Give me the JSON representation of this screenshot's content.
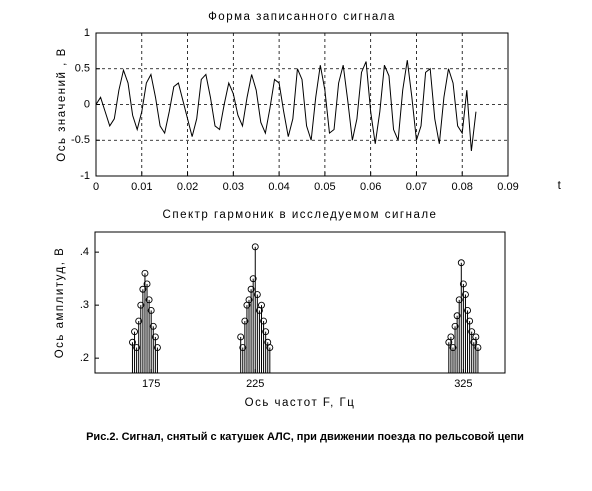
{
  "chart_data": [
    {
      "type": "line",
      "title": "Форма записанного сигнала",
      "ylabel": "Ось значений , В",
      "xlabel": "t",
      "x": [
        0,
        0.001,
        0.002,
        0.003,
        0.004,
        0.005,
        0.006,
        0.007,
        0.008,
        0.009,
        0.01,
        0.011,
        0.012,
        0.013,
        0.014,
        0.015,
        0.016,
        0.017,
        0.018,
        0.019,
        0.02,
        0.021,
        0.022,
        0.023,
        0.024,
        0.025,
        0.026,
        0.027,
        0.028,
        0.029,
        0.03,
        0.031,
        0.032,
        0.033,
        0.034,
        0.035,
        0.036,
        0.037,
        0.038,
        0.039,
        0.04,
        0.041,
        0.042,
        0.043,
        0.044,
        0.045,
        0.046,
        0.047,
        0.048,
        0.049,
        0.05,
        0.051,
        0.052,
        0.053,
        0.054,
        0.055,
        0.056,
        0.057,
        0.058,
        0.059,
        0.06,
        0.061,
        0.062,
        0.063,
        0.064,
        0.065,
        0.066,
        0.067,
        0.068,
        0.069,
        0.07,
        0.071,
        0.072,
        0.073,
        0.074,
        0.075,
        0.076,
        0.077,
        0.078,
        0.079,
        0.08,
        0.081,
        0.082,
        0.083
      ],
      "values": [
        0,
        0.1,
        -0.1,
        -0.3,
        -0.2,
        0.2,
        0.48,
        0.3,
        -0.15,
        -0.35,
        -0.1,
        0.3,
        0.42,
        0.1,
        -0.3,
        -0.4,
        -0.1,
        0.25,
        0.3,
        0.05,
        -0.2,
        -0.45,
        -0.2,
        0.35,
        0.42,
        0.1,
        -0.3,
        -0.35,
        0,
        0.3,
        0.15,
        -0.15,
        -0.3,
        0.1,
        0.42,
        0.2,
        -0.25,
        -0.4,
        -0.05,
        0.35,
        0.3,
        -0.1,
        -0.45,
        -0.2,
        0.5,
        0.35,
        -0.3,
        -0.5,
        0.1,
        0.55,
        0.2,
        -0.4,
        -0.35,
        0.3,
        0.55,
        0.05,
        -0.5,
        -0.2,
        0.45,
        0.6,
        -0.1,
        -0.55,
        -0.1,
        0.55,
        0.4,
        -0.35,
        -0.5,
        0.2,
        0.62,
        0.1,
        -0.5,
        -0.3,
        0.45,
        0.5,
        -0.2,
        -0.55,
        0.1,
        0.5,
        0.3,
        -0.3,
        -0.4,
        0.2,
        -0.65,
        -0.1
      ],
      "color": "#000000",
      "xlim": [
        0,
        0.09
      ],
      "xticks": [
        0,
        0.01,
        0.02,
        0.03,
        0.04,
        0.05,
        0.06,
        0.07,
        0.08,
        0.09
      ],
      "ylim": [
        -1,
        1
      ],
      "yticks": [
        -1,
        -0.5,
        0,
        0.5,
        1
      ],
      "grid": true
    },
    {
      "type": "stem",
      "title": "Спектр гармоник в исследуемом сигнале",
      "ylabel": "Ось амплитуд, В",
      "xlabel": "Ось частот F, Гц",
      "x": [
        166,
        167,
        168,
        169,
        170,
        171,
        172,
        173,
        174,
        175,
        176,
        177,
        178,
        218,
        219,
        220,
        221,
        222,
        223,
        224,
        225,
        226,
        227,
        228,
        229,
        230,
        231,
        232,
        318,
        319,
        320,
        321,
        322,
        323,
        324,
        325,
        326,
        327,
        328,
        329,
        330,
        331,
        332
      ],
      "values": [
        0.23,
        0.25,
        0.22,
        0.27,
        0.3,
        0.33,
        0.36,
        0.34,
        0.31,
        0.29,
        0.26,
        0.24,
        0.22,
        0.24,
        0.22,
        0.27,
        0.3,
        0.31,
        0.33,
        0.35,
        0.41,
        0.32,
        0.29,
        0.3,
        0.27,
        0.25,
        0.23,
        0.22,
        0.23,
        0.24,
        0.22,
        0.26,
        0.28,
        0.31,
        0.38,
        0.34,
        0.32,
        0.29,
        0.27,
        0.25,
        0.23,
        0.24,
        0.22
      ],
      "color": "#000000",
      "xlim": [
        148,
        345
      ],
      "xticks": [
        175,
        225,
        325
      ],
      "ylim": [
        0.172,
        0.438
      ],
      "yticks": [
        {
          "value": 0.2,
          "label": ".2"
        },
        {
          "value": 0.3,
          "label": ".3"
        },
        {
          "value": 0.4,
          "label": ".4"
        }
      ],
      "grid": false
    }
  ],
  "caption": "Рис.2. Сигнал, снятый с катушек АЛС, при движении поезда по рельсовой цепи"
}
